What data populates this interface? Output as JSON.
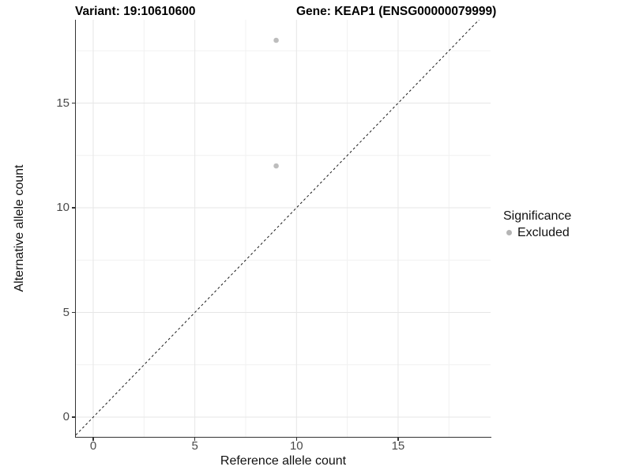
{
  "header": {
    "variant_label": "Variant: 19:10610600",
    "gene_label": "Gene: KEAP1 (ENSG00000079999)"
  },
  "chart_data": {
    "type": "scatter",
    "title_left": "Variant: 19:10610600",
    "title_right": "Gene: KEAP1 (ENSG00000079999)",
    "xlabel": "Reference allele count",
    "ylabel": "Alternative allele count",
    "xticks": [
      0,
      5,
      10,
      15
    ],
    "yticks": [
      0,
      5,
      10,
      15
    ],
    "x_minor_ticks": [
      2.5,
      7.5,
      12.5,
      17.5
    ],
    "y_minor_ticks": [
      2.5,
      7.5,
      12.5,
      17.5
    ],
    "xlim": [
      -0.9,
      19.5
    ],
    "ylim": [
      -0.95,
      19.0
    ],
    "grid": true,
    "legend_position": "right",
    "series": [
      {
        "name": "Excluded",
        "color": "#bdbdbd",
        "points": [
          {
            "x": 9,
            "y": 18
          },
          {
            "x": 9,
            "y": 12
          }
        ]
      }
    ],
    "identity_line": {
      "style": "dashed",
      "color": "#1a1a1a",
      "slope": 1,
      "intercept": 0
    }
  },
  "legend": {
    "title": "Significance",
    "items": [
      {
        "label": "Excluded",
        "color": "#b5b5b5"
      }
    ]
  }
}
